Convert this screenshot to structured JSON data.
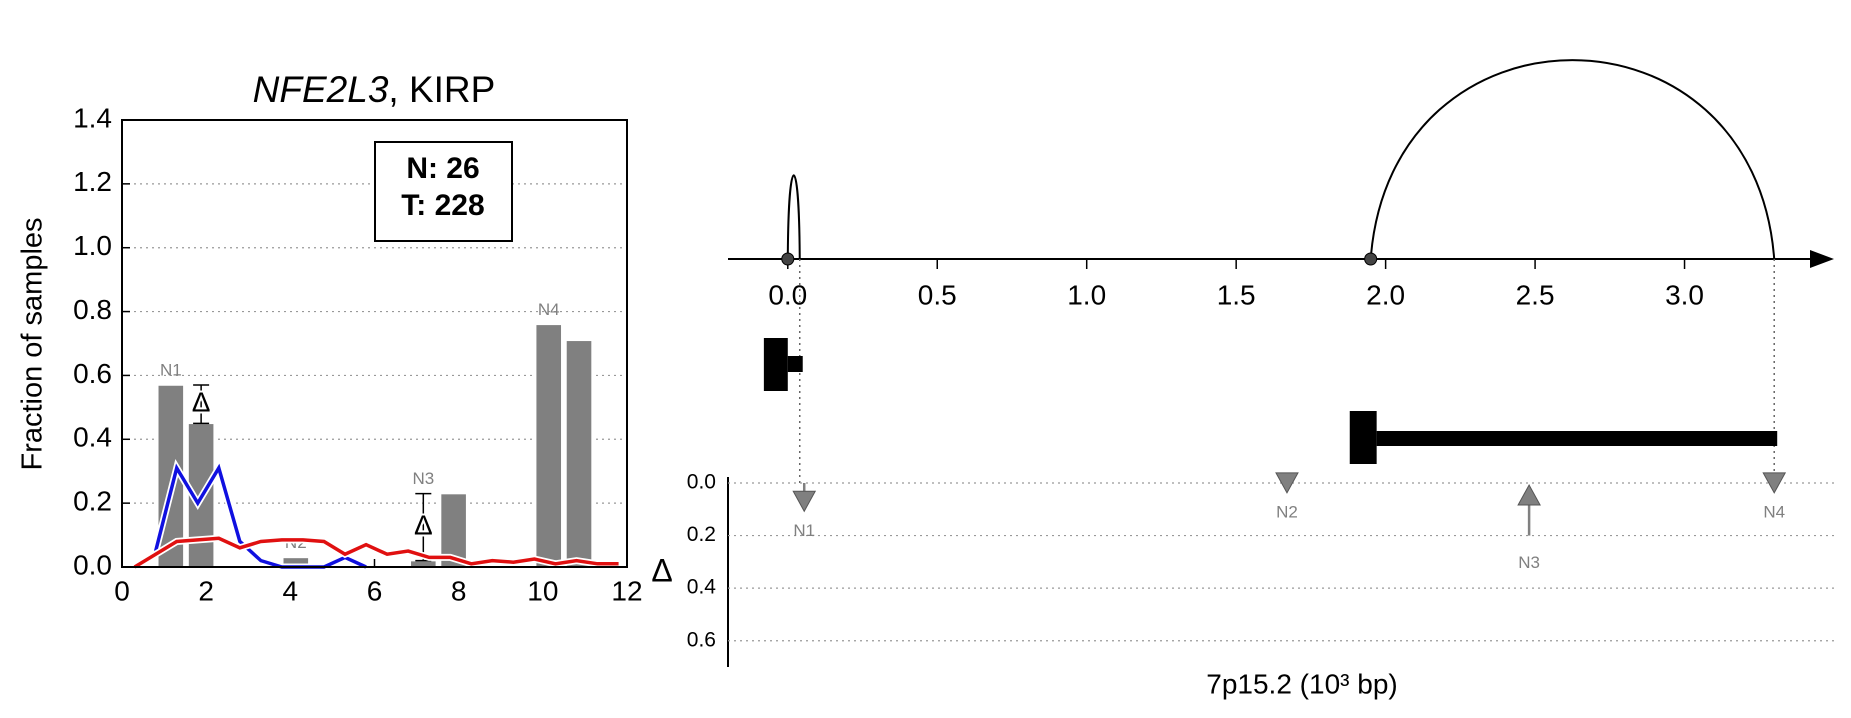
{
  "chart_data": [
    {
      "type": "bar",
      "title_italic": "NFE2L3",
      "title": ", KIRP",
      "ylabel": "Fraction of samples",
      "ylim": [
        0,
        1.4
      ],
      "yticks": [
        {
          "value": 0,
          "label": "0.0"
        },
        {
          "value": 0.2,
          "label": "0.2"
        },
        {
          "value": 0.4,
          "label": "0.4"
        },
        {
          "value": 0.6,
          "label": "0.6"
        },
        {
          "value": 0.8,
          "label": "0.8"
        },
        {
          "value": 1.0,
          "label": "1.0"
        },
        {
          "value": 1.2,
          "label": "1.2"
        },
        {
          "value": 1.4,
          "label": "1.4"
        }
      ],
      "xlim": [
        0,
        12
      ],
      "xticks": [
        0,
        2,
        4,
        6,
        8,
        10,
        12
      ],
      "grid": true,
      "bar_color": "#808080",
      "bar_width": 0.62,
      "delta_symbol": "Δ",
      "groups": [
        {
          "label": "N1",
          "x": [
            1.16,
            1.88
          ],
          "values": [
            0.57,
            0.45
          ],
          "delta": true
        },
        {
          "label": "N2",
          "x": [
            4.13
          ],
          "values": [
            0.03
          ],
          "delta": false
        },
        {
          "label": "N3",
          "x": [
            7.16,
            7.88
          ],
          "values": [
            0.02,
            0.23
          ],
          "delta": true
        },
        {
          "label": "N4",
          "x": [
            10.14,
            10.86
          ],
          "values": [
            0.76,
            0.71
          ],
          "delta": false
        }
      ],
      "annotation": [
        "N: 26",
        "T: 228"
      ],
      "x": [
        0.3,
        0.8,
        1.3,
        1.8,
        2.3,
        2.8,
        3.3,
        3.8,
        4.3,
        4.8,
        5.3,
        5.8,
        6.3,
        6.8,
        7.3,
        7.8,
        8.3,
        8.8,
        9.3,
        9.8,
        10.3,
        10.8,
        11.3,
        11.8
      ],
      "series": [
        {
          "color": "#1010e0",
          "values": [
            null,
            0.05,
            0.31,
            0.2,
            0.31,
            0.08,
            0.02,
            0,
            0,
            0,
            0.03,
            0,
            null,
            null,
            null,
            null,
            null,
            null,
            null,
            null,
            null,
            null,
            null,
            null
          ]
        },
        {
          "color": "#e01010",
          "values": [
            0,
            0.04,
            0.08,
            0.085,
            0.09,
            0.06,
            0.08,
            0.085,
            0.085,
            0.08,
            0.04,
            0.07,
            0.04,
            0.05,
            0.03,
            0.03,
            0.01,
            0.02,
            0.015,
            0.025,
            0.01,
            0.02,
            0.01,
            0.01
          ]
        }
      ]
    },
    {
      "type": "gene",
      "xlabel": "7p15.2 (10³ bp)",
      "xlim": [
        -0.2,
        3.5
      ],
      "xticks": [
        {
          "value": 0,
          "label": "0.0"
        },
        {
          "value": 0.5,
          "label": "0.5"
        },
        {
          "value": 1.0,
          "label": "1.0"
        },
        {
          "value": 1.5,
          "label": "1.5"
        },
        {
          "value": 2.0,
          "label": "2.0"
        },
        {
          "value": 2.5,
          "label": "2.5"
        },
        {
          "value": 3.0,
          "label": "3.0"
        }
      ],
      "arcs": [
        {
          "start": 0.0,
          "end": 0.04
        },
        {
          "start": 1.95,
          "end": 3.3
        }
      ],
      "transcripts": [
        {
          "start": -0.08,
          "cap_end": 0.0,
          "end": 0.05
        },
        {
          "start": 1.88,
          "cap_end": 1.97,
          "end": 3.31
        }
      ],
      "ylabel": "Δ",
      "ylim": [
        0,
        0.7
      ],
      "yticks": [
        {
          "value": 0,
          "label": "0.0"
        },
        {
          "value": 0.2,
          "label": "0.2"
        },
        {
          "value": 0.4,
          "label": "0.4"
        },
        {
          "value": 0.6,
          "label": "0.6"
        }
      ],
      "grid": true,
      "marker_color": "#808080",
      "markers": [
        {
          "label": "N1",
          "x": 0.055,
          "delta": 0.1,
          "direction": "down"
        },
        {
          "label": "N2",
          "x": 1.67,
          "delta": 0.03,
          "direction": "down"
        },
        {
          "label": "N3",
          "x": 2.48,
          "delta": 0.2,
          "direction": "up"
        },
        {
          "label": "N4",
          "x": 3.3,
          "delta": 0.03,
          "direction": "down"
        }
      ]
    }
  ]
}
